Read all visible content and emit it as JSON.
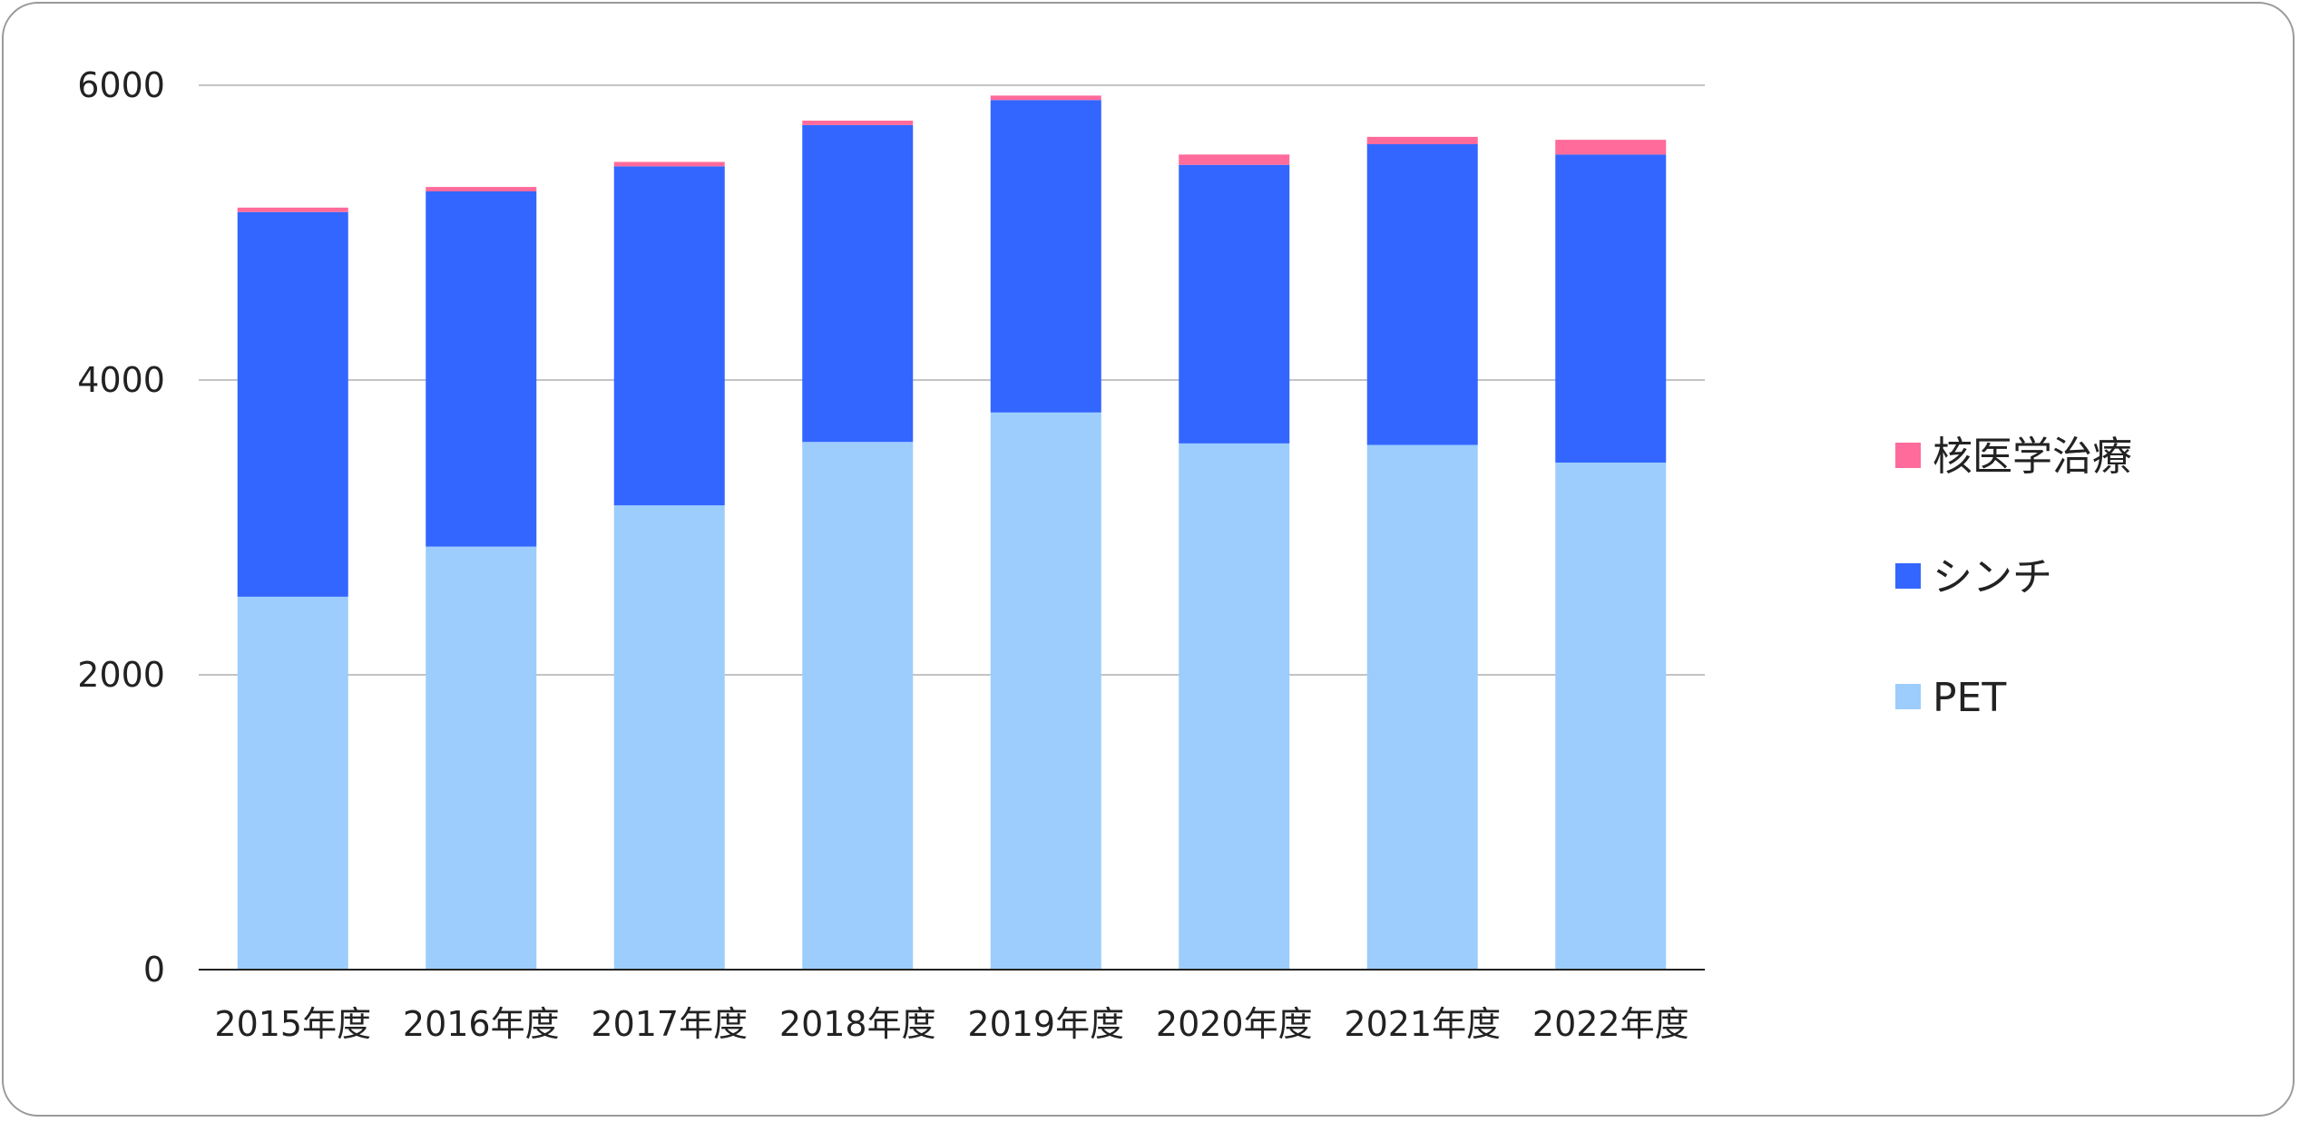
{
  "chart_data": {
    "type": "bar",
    "stacked": true,
    "categories": [
      "2015年度",
      "2016年度",
      "2017年度",
      "2018年度",
      "2019年度",
      "2020年度",
      "2021年度",
      "2022年度"
    ],
    "series": [
      {
        "name": "PET",
        "color": "#9ccdfc",
        "values": [
          2530,
          2870,
          3150,
          3580,
          3780,
          3570,
          3560,
          3440
        ]
      },
      {
        "name": "シンチ",
        "color": "#3366ff",
        "values": [
          2610,
          2410,
          2300,
          2150,
          2120,
          1890,
          2040,
          2090
        ]
      },
      {
        "name": "核医学治療",
        "color": "#ff6b9b",
        "values": [
          30,
          30,
          30,
          30,
          30,
          70,
          50,
          100
        ]
      }
    ],
    "legend_order": [
      "核医学治療",
      "シンチ",
      "PET"
    ],
    "yticks": [
      "0",
      "2000",
      "4000",
      "6000"
    ],
    "ylim": [
      0,
      6000
    ],
    "grid": true,
    "legend_position": "right",
    "title": "",
    "xlabel": "",
    "ylabel": ""
  }
}
